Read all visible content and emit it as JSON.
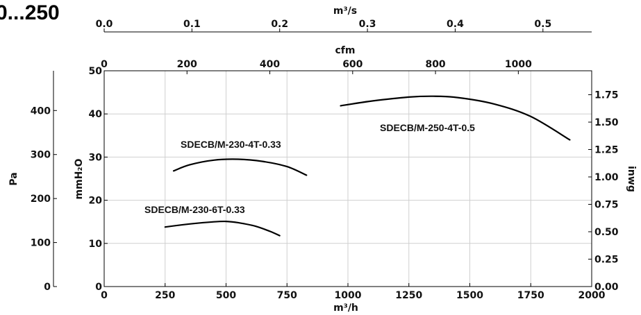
{
  "page": {
    "title": "0...250"
  },
  "chart_data": {
    "type": "line",
    "title": "0...250",
    "xlabel": "m³/h",
    "ylabel": "mmH₂O",
    "xlim": [
      0,
      2000
    ],
    "ylim": [
      0,
      50
    ],
    "x_ticks": [
      0,
      250,
      500,
      750,
      1000,
      1250,
      1500,
      1750,
      2000
    ],
    "y_ticks": [
      0,
      10,
      20,
      30,
      40,
      50
    ],
    "grid": true,
    "secondary_axes": {
      "top_m3s": {
        "label": "m³/s",
        "ticks": [
          "0.0",
          "0.1",
          "0.2",
          "0.3",
          "0.4",
          "0.5"
        ],
        "values": [
          0.0,
          0.1,
          0.2,
          0.3,
          0.4,
          0.5
        ]
      },
      "top_cfm": {
        "label": "cfm",
        "ticks": [
          "0",
          "200",
          "400",
          "600",
          "800",
          "1000"
        ],
        "values": [
          0,
          200,
          400,
          600,
          800,
          1000
        ]
      },
      "left_pa": {
        "label": "Pa",
        "ticks": [
          "0",
          "100",
          "200",
          "300",
          "400"
        ],
        "values": [
          0,
          100,
          200,
          300,
          400
        ]
      },
      "right_inwg": {
        "label": "inwg",
        "ticks": [
          "0.00",
          "0.25",
          "0.50",
          "0.75",
          "1.00",
          "1.25",
          "1.50",
          "1.75"
        ],
        "values": [
          0.0,
          0.25,
          0.5,
          0.75,
          1.0,
          1.25,
          1.5,
          1.75
        ]
      }
    },
    "series": [
      {
        "name": "SDECB/M-230-4T-0.33",
        "x": [
          285,
          350,
          450,
          550,
          650,
          750,
          830
        ],
        "y": [
          26.8,
          28.2,
          29.3,
          29.5,
          29.0,
          27.8,
          25.8
        ]
      },
      {
        "name": "SDECB/M-230-6T-0.33",
        "x": [
          250,
          350,
          450,
          500,
          550,
          620,
          680,
          720
        ],
        "y": [
          13.8,
          14.5,
          15.0,
          15.1,
          14.8,
          14.0,
          12.8,
          11.8
        ]
      },
      {
        "name": "SDECB/M-250-4T-0.5",
        "x": [
          970,
          1100,
          1250,
          1350,
          1450,
          1600,
          1750,
          1910
        ],
        "y": [
          41.9,
          43.0,
          43.9,
          44.1,
          43.8,
          42.3,
          39.4,
          34.0
        ]
      }
    ],
    "line_color": "#000000",
    "grid_color": "#cfcfcf"
  }
}
